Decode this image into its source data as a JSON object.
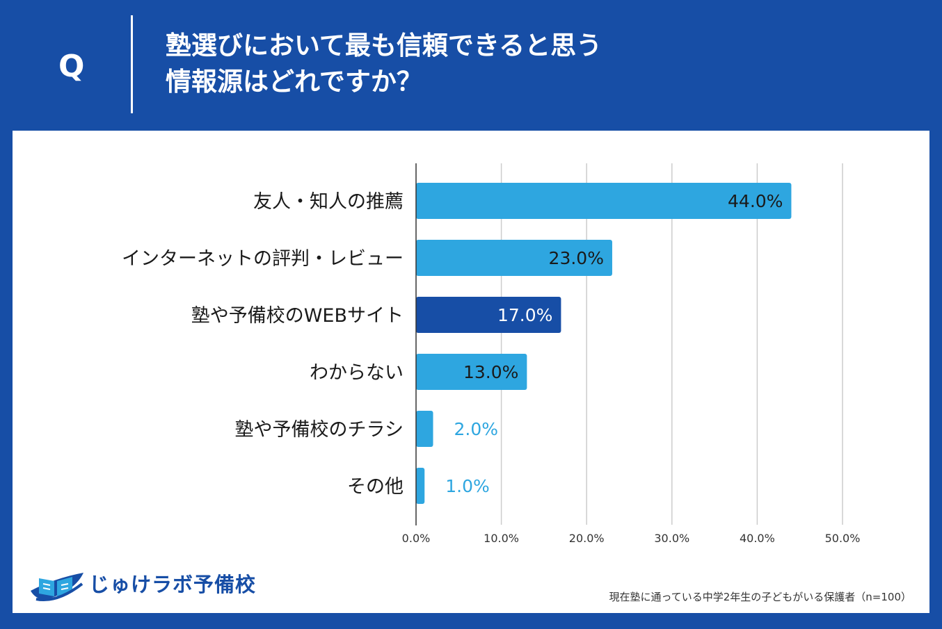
{
  "question": {
    "marker": "Q",
    "line1": "塾選びにおいて最も信頼できると思う",
    "line2": "情報源はどれですか？"
  },
  "chart_data": {
    "type": "bar",
    "orientation": "horizontal",
    "categories": [
      "友人・知人の推薦",
      "インターネットの評判・レビュー",
      "塾や予備校のWEBサイト",
      "わからない",
      "塾や予備校のチラシ",
      "その他"
    ],
    "values": [
      44.0,
      23.0,
      17.0,
      13.0,
      2.0,
      1.0
    ],
    "value_labels": [
      "44.0%",
      "23.0%",
      "17.0%",
      "13.0%",
      "2.0%",
      "1.0%"
    ],
    "highlight_index": 2,
    "xlim": [
      0,
      50
    ],
    "xticks": [
      0,
      10,
      20,
      30,
      40,
      50
    ],
    "xtick_labels": [
      "0.0%",
      "10.0%",
      "20.0%",
      "30.0%",
      "40.0%",
      "50.0%"
    ],
    "grid": true,
    "colors": {
      "bar": "#2ea6e0",
      "highlight": "#174ea6",
      "label_inside": "#1a1a1a",
      "label_inside_highlight": "#ffffff",
      "label_outside": "#2ea6e0",
      "gridline": "#cccccc",
      "axis": "#333333"
    }
  },
  "logo": {
    "name": "じゅけラボ予備校",
    "icon": "open-book-icon"
  },
  "footnote": "現在塾に通っている中学2年生の子どもがいる保護者（n=100）"
}
